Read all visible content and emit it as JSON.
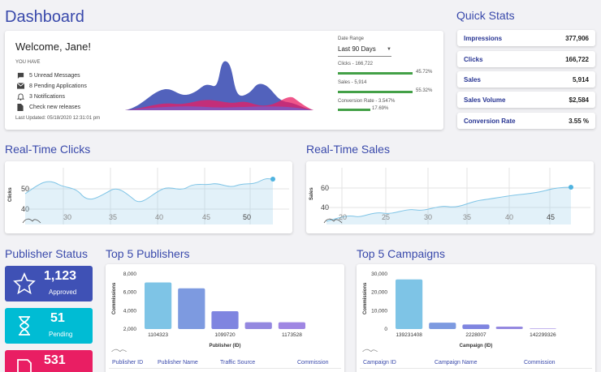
{
  "page_title": "Dashboard",
  "welcome": {
    "greeting": "Welcome, Jane!",
    "you_have_label": "YOU HAVE",
    "items": [
      {
        "icon": "chat-icon",
        "label": "5 Unread Messages"
      },
      {
        "icon": "mail-icon",
        "label": "8 Pending Applications"
      },
      {
        "icon": "bell-icon",
        "label": "3 Notifications"
      },
      {
        "icon": "document-icon",
        "label": "Check new releases"
      }
    ],
    "last_updated": "Last Updated: 05/18/2020 12:31:01 pm",
    "date_range_label": "Date Range",
    "date_range_value": "Last 90 Days",
    "metrics": [
      {
        "label": "Clicks - 166,722",
        "percent_text": "45.72%",
        "fraction": 0.4572
      },
      {
        "label": "Sales - 5,914",
        "percent_text": "55.32%",
        "fraction": 0.5532
      },
      {
        "label": "Conversion Rate - 3.547%",
        "percent_text": "17.69%",
        "fraction": 0.1769
      }
    ]
  },
  "quick_stats": {
    "title": "Quick Stats",
    "rows": [
      {
        "label": "Impressions",
        "value": "377,906"
      },
      {
        "label": "Clicks",
        "value": "166,722"
      },
      {
        "label": "Sales",
        "value": "5,914"
      },
      {
        "label": "Sales Volume",
        "value": "$2,584"
      },
      {
        "label": "Conversion Rate",
        "value": "3.55 %"
      }
    ]
  },
  "realtime_clicks": {
    "title": "Real-Time Clicks",
    "ylabel": "Clicks",
    "y_ticks": [
      "50",
      "40"
    ],
    "x_ticks": [
      "30",
      "35",
      "40",
      "45",
      "50"
    ]
  },
  "realtime_sales": {
    "title": "Real-Time Sales",
    "ylabel": "Sales",
    "y_ticks": [
      "60",
      "40"
    ],
    "x_ticks": [
      "20",
      "25",
      "30",
      "35",
      "40",
      "45"
    ]
  },
  "publisher_status": {
    "title": "Publisher Status",
    "tiles": [
      {
        "value": "1,123",
        "label": "Approved",
        "color": "#3f51b5",
        "icon": "star-icon"
      },
      {
        "value": "51",
        "label": "Pending",
        "color": "#00bcd4",
        "icon": "hourglass-icon"
      },
      {
        "value": "531",
        "label": "",
        "color": "#e91e63",
        "icon": "blocked-icon"
      }
    ]
  },
  "top_publishers": {
    "title": "Top 5 Publishers",
    "columns": [
      "Publisher ID",
      "Publisher Name",
      "Traffic Source",
      "Commission"
    ]
  },
  "top_campaigns": {
    "title": "Top 5 Campaigns",
    "columns": [
      "Campaign ID",
      "Campaign Name",
      "Commission"
    ]
  },
  "chart_data": [
    {
      "type": "bar",
      "xlabel": "Publisher (ID)",
      "ylabel": "Commissions",
      "ylim": [
        1500,
        8000
      ],
      "y_ticks": [
        "8,000",
        "6,000",
        "4,000",
        "2,000"
      ],
      "categories": [
        "1104323",
        "",
        "1099720",
        "",
        "1173528"
      ],
      "values": [
        7000,
        6300,
        3600,
        2300,
        2300
      ],
      "colors": [
        "#7ec4e6",
        "#7d9ae0",
        "#7f85e0",
        "#9488e0",
        "#9f86e3"
      ]
    },
    {
      "type": "bar",
      "xlabel": "Campaign (ID)",
      "ylabel": "Commissions",
      "ylim": [
        0,
        30000
      ],
      "y_ticks": [
        "30,000",
        "20,000",
        "10,000",
        "0"
      ],
      "categories": [
        "139231408",
        "",
        "2228007",
        "",
        "142299326"
      ],
      "values": [
        27000,
        3500,
        2500,
        1300,
        300
      ],
      "colors": [
        "#7ec4e6",
        "#7d9ae0",
        "#7f85e0",
        "#9488e0",
        "#9f86e3"
      ]
    }
  ]
}
